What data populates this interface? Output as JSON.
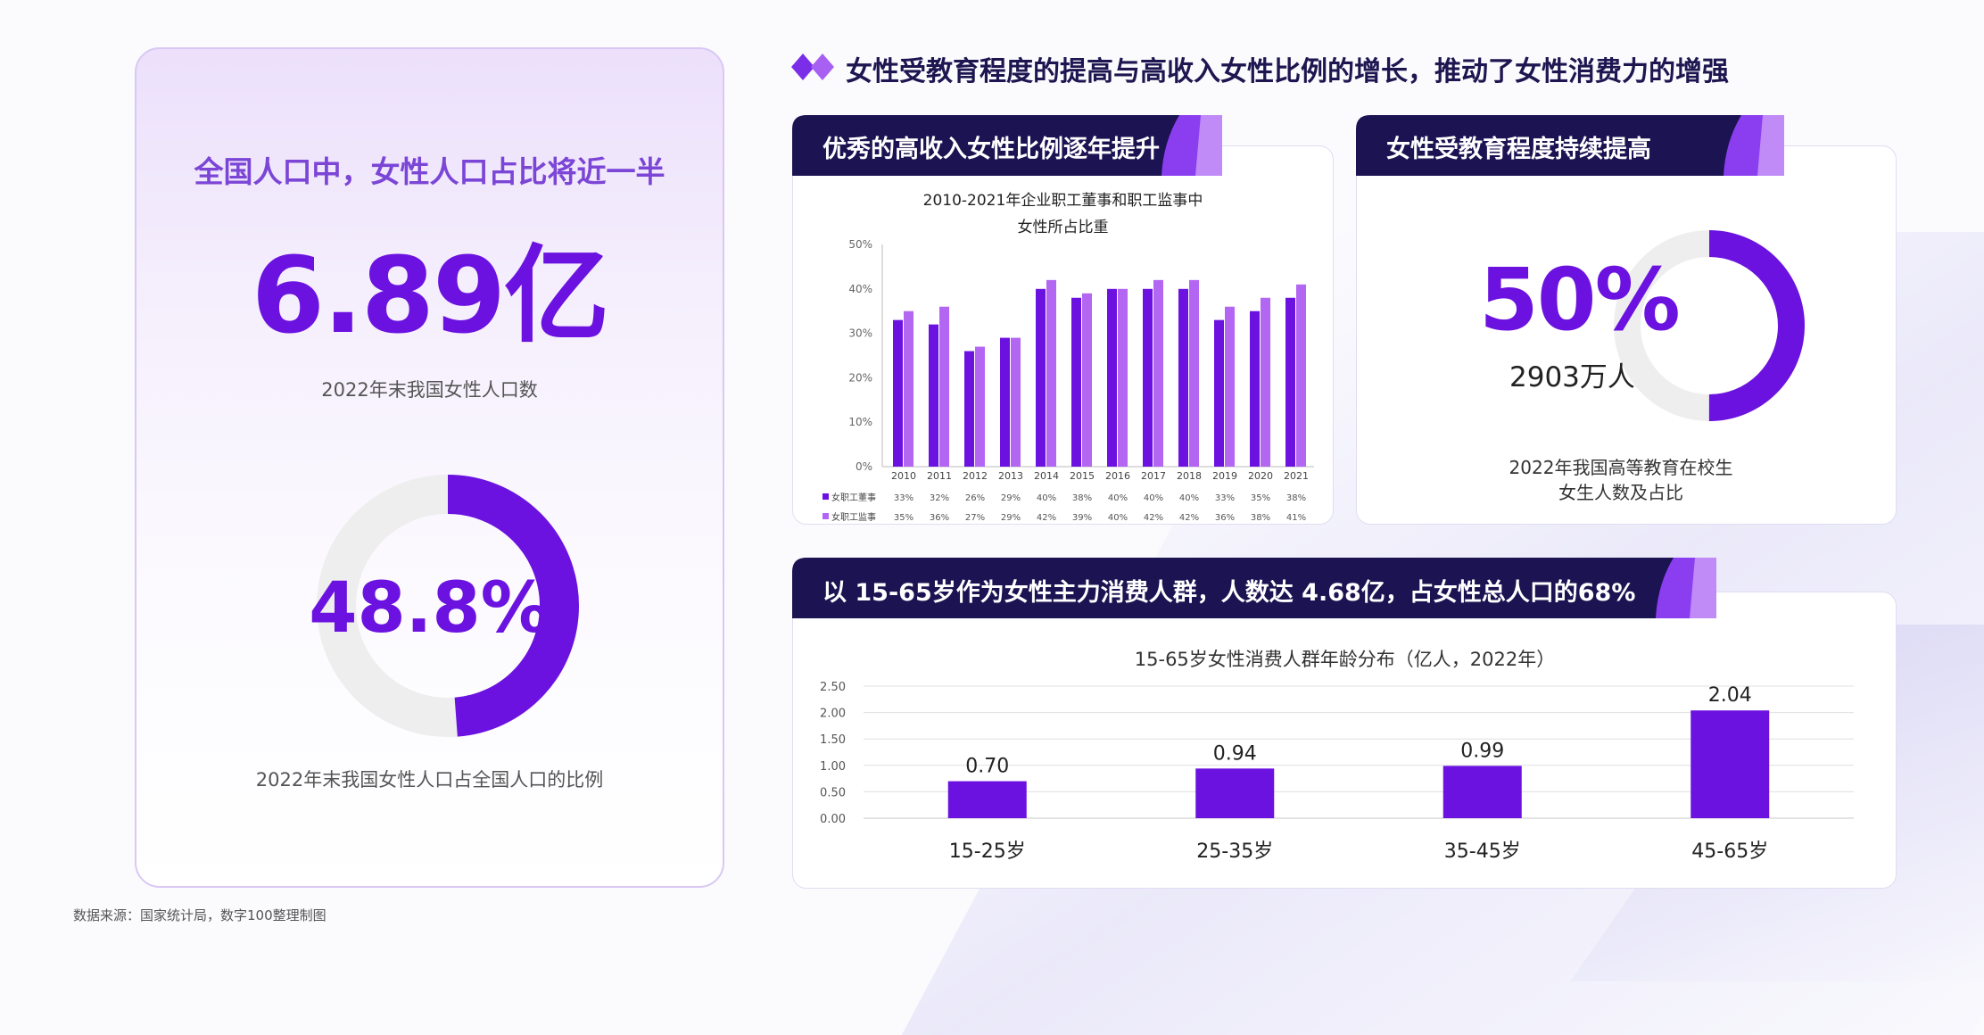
{
  "headline": "女性受教育程度的提高与高收入女性比例的增长，推动了女性消费力的增强",
  "left_panel": {
    "title": "全国人口中，女性人口占比将近一半",
    "big_number": "6.89亿",
    "big_number_caption": "2022年末我国女性人口数",
    "ratio_text": "48.8%",
    "ratio_value": 0.488,
    "ratio_caption": "2022年末我国女性人口占全国人口的比例"
  },
  "card_income": {
    "banner": "优秀的高收入女性比例逐年提升"
  },
  "card_education": {
    "banner": "女性受教育程度持续提高",
    "percent_text": "50%",
    "percent_value": 0.5,
    "count_text": "2903万人",
    "caption_line1": "2022年我国高等教育在校生",
    "caption_line2": "女生人数及占比"
  },
  "card_age": {
    "banner": "以 15-65岁作为女性主力消费人群，人数达 4.68亿，占女性总人口的68%"
  },
  "source": "数据来源：国家统计局，数字100整理制图",
  "colors": {
    "purple": "#6b12e0",
    "light_purple": "#b266f2",
    "navy": "#1c1352",
    "ring_gray": "#eeeeee"
  },
  "chart_data": [
    {
      "type": "bar",
      "title_line1": "2010-2021年企业职工董事和职工监事中",
      "title_line2": "女性所占比重",
      "categories": [
        "2010",
        "2011",
        "2012",
        "2013",
        "2014",
        "2015",
        "2016",
        "2017",
        "2018",
        "2019",
        "2020",
        "2021"
      ],
      "series": [
        {
          "name": "女职工董事",
          "color": "#6b12e0",
          "values": [
            33,
            32,
            26,
            29,
            40,
            38,
            40,
            40,
            40,
            33,
            35,
            38
          ],
          "labels": [
            "33%",
            "32%",
            "26%",
            "29%",
            "40%",
            "38%",
            "40%",
            "40%",
            "40%",
            "33%",
            "35%",
            "38%"
          ]
        },
        {
          "name": "女职工监事",
          "color": "#b266f2",
          "values": [
            35,
            36,
            27,
            29,
            42,
            39,
            40,
            42,
            42,
            36,
            38,
            41
          ],
          "labels": [
            "35%",
            "36%",
            "27%",
            "29%",
            "42%",
            "39%",
            "40%",
            "42%",
            "42%",
            "36%",
            "38%",
            "41%"
          ]
        }
      ],
      "ylim": [
        0,
        50
      ],
      "y_ticks": [
        "0%",
        "10%",
        "20%",
        "30%",
        "40%",
        "50%"
      ],
      "legend": "table-below"
    },
    {
      "type": "bar",
      "title": "15-65岁女性消费人群年龄分布（亿人，2022年）",
      "categories": [
        "15-25岁",
        "25-35岁",
        "35-45岁",
        "45-65岁"
      ],
      "values": [
        0.7,
        0.94,
        0.99,
        2.04
      ],
      "value_labels": [
        "0.70",
        "0.94",
        "0.99",
        "2.04"
      ],
      "ylim": [
        0,
        2.5
      ],
      "y_ticks": [
        "0.00",
        "0.50",
        "1.00",
        "1.50",
        "2.00",
        "2.50"
      ],
      "grid": true
    }
  ]
}
